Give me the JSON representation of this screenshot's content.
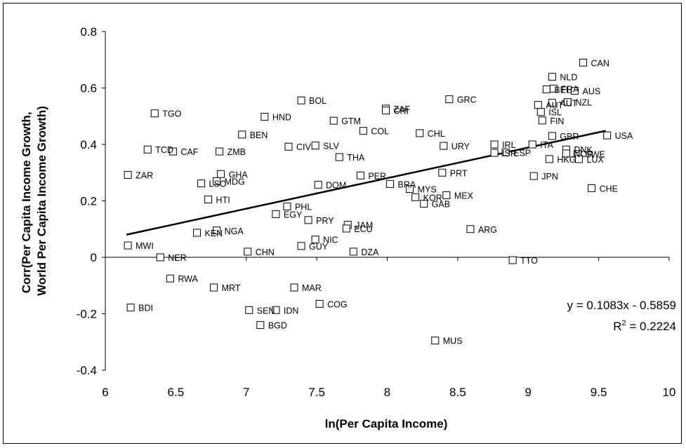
{
  "chart_data": {
    "type": "scatter",
    "xlabel": "ln(Per Capita Income)",
    "ylabel": [
      "Corr(Per Capita Income Growth,",
      "World Per Capita Income Growth)"
    ],
    "xlim": [
      6,
      10
    ],
    "ylim": [
      -0.4,
      0.8
    ],
    "xticks": [
      "6",
      "6.5",
      "7",
      "7.5",
      "8",
      "8.5",
      "9",
      "9.5",
      "10"
    ],
    "yticks": [
      "0.8",
      "0.6",
      "0.4",
      "0.2",
      "0",
      "-0.2",
      "-0.4"
    ],
    "grid": false,
    "marker": "open-square",
    "trendline": {
      "slope": 0.1083,
      "intercept": -0.5859,
      "x_range": [
        6.15,
        9.55
      ]
    },
    "equation": "y = 0.1083x - 0.5859",
    "r2_label": "R",
    "r2_sup": "2",
    "r2_value": " = 0.2224",
    "points": [
      {
        "label": "CAN",
        "x": 9.39,
        "y": 0.69
      },
      {
        "label": "NLD",
        "x": 9.17,
        "y": 0.64
      },
      {
        "label": "BEL",
        "x": 9.13,
        "y": 0.595
      },
      {
        "label": "FRA",
        "x": 9.18,
        "y": 0.598
      },
      {
        "label": "AUS",
        "x": 9.33,
        "y": 0.59
      },
      {
        "label": "NZL",
        "x": 9.28,
        "y": 0.55
      },
      {
        "label": "AUT",
        "x": 9.17,
        "y": 0.548
      },
      {
        "label": "AUT",
        "x": 9.07,
        "y": 0.54
      },
      {
        "label": "ISL",
        "x": 9.09,
        "y": 0.515
      },
      {
        "label": "FIN",
        "x": 9.1,
        "y": 0.485
      },
      {
        "label": "GBR",
        "x": 9.17,
        "y": 0.43
      },
      {
        "label": "USA",
        "x": 9.56,
        "y": 0.432
      },
      {
        "label": "ITA",
        "x": 9.03,
        "y": 0.4
      },
      {
        "label": "IRL",
        "x": 8.76,
        "y": 0.4
      },
      {
        "label": "ISR",
        "x": 8.76,
        "y": 0.37
      },
      {
        "label": "ESP",
        "x": 8.84,
        "y": 0.372
      },
      {
        "label": "DNK",
        "x": 9.27,
        "y": 0.382
      },
      {
        "label": "NOR",
        "x": 9.27,
        "y": 0.368
      },
      {
        "label": "SWE",
        "x": 9.35,
        "y": 0.366
      },
      {
        "label": "HKG",
        "x": 9.15,
        "y": 0.348
      },
      {
        "label": "LUX",
        "x": 9.36,
        "y": 0.348
      },
      {
        "label": "JPN",
        "x": 9.04,
        "y": 0.288
      },
      {
        "label": "CHE",
        "x": 9.45,
        "y": 0.245
      },
      {
        "label": "TTO",
        "x": 8.89,
        "y": -0.01
      },
      {
        "label": "GRC",
        "x": 8.44,
        "y": 0.56
      },
      {
        "label": "ZAF",
        "x": 7.99,
        "y": 0.527
      },
      {
        "label": "CRI",
        "x": 7.99,
        "y": 0.52
      },
      {
        "label": "CHL",
        "x": 8.23,
        "y": 0.44
      },
      {
        "label": "URY",
        "x": 8.4,
        "y": 0.395
      },
      {
        "label": "PRT",
        "x": 8.39,
        "y": 0.3
      },
      {
        "label": "MYS",
        "x": 8.16,
        "y": 0.242
      },
      {
        "label": "MEX",
        "x": 8.42,
        "y": 0.22
      },
      {
        "label": "KOR",
        "x": 8.2,
        "y": 0.213
      },
      {
        "label": "GAB",
        "x": 8.26,
        "y": 0.19
      },
      {
        "label": "ARG",
        "x": 8.59,
        "y": 0.1
      },
      {
        "label": "MUS",
        "x": 8.34,
        "y": -0.295
      },
      {
        "label": "BRA",
        "x": 8.02,
        "y": 0.26
      },
      {
        "label": "PER",
        "x": 7.81,
        "y": 0.29
      },
      {
        "label": "COL",
        "x": 7.83,
        "y": 0.448
      },
      {
        "label": "GTM",
        "x": 7.62,
        "y": 0.484
      },
      {
        "label": "BOL",
        "x": 7.39,
        "y": 0.556
      },
      {
        "label": "HND",
        "x": 7.13,
        "y": 0.498
      },
      {
        "label": "BEN",
        "x": 6.97,
        "y": 0.435
      },
      {
        "label": "CIV",
        "x": 7.3,
        "y": 0.392
      },
      {
        "label": "SLV",
        "x": 7.49,
        "y": 0.396
      },
      {
        "label": "THA",
        "x": 7.66,
        "y": 0.355
      },
      {
        "label": "DOM",
        "x": 7.51,
        "y": 0.257
      },
      {
        "label": "PHL",
        "x": 7.29,
        "y": 0.18
      },
      {
        "label": "EGY",
        "x": 7.21,
        "y": 0.153
      },
      {
        "label": "PRY",
        "x": 7.44,
        "y": 0.132
      },
      {
        "label": "JAM",
        "x": 7.72,
        "y": 0.115
      },
      {
        "label": "ECU",
        "x": 7.71,
        "y": 0.102
      },
      {
        "label": "NIC",
        "x": 7.49,
        "y": 0.063
      },
      {
        "label": "GUY",
        "x": 7.39,
        "y": 0.04
      },
      {
        "label": "DZA",
        "x": 7.76,
        "y": 0.02
      },
      {
        "label": "CHN",
        "x": 7.01,
        "y": 0.02
      },
      {
        "label": "MAR",
        "x": 7.34,
        "y": -0.107
      },
      {
        "label": "COG",
        "x": 7.52,
        "y": -0.165
      },
      {
        "label": "IDN",
        "x": 7.21,
        "y": -0.187
      },
      {
        "label": "SEN",
        "x": 7.02,
        "y": -0.187
      },
      {
        "label": "BGD",
        "x": 7.1,
        "y": -0.24
      },
      {
        "label": "MRT",
        "x": 6.77,
        "y": -0.107
      },
      {
        "label": "RWA",
        "x": 6.46,
        "y": -0.075
      },
      {
        "label": "BDI",
        "x": 6.18,
        "y": -0.178
      },
      {
        "label": "NER",
        "x": 6.39,
        "y": 0.0
      },
      {
        "label": "MWI",
        "x": 6.16,
        "y": 0.042
      },
      {
        "label": "NGA",
        "x": 6.79,
        "y": 0.095
      },
      {
        "label": "KEN",
        "x": 6.65,
        "y": 0.087
      },
      {
        "label": "HTI",
        "x": 6.73,
        "y": 0.205
      },
      {
        "label": "LSO",
        "x": 6.68,
        "y": 0.262
      },
      {
        "label": "MDG",
        "x": 6.79,
        "y": 0.27
      },
      {
        "label": "GHA",
        "x": 6.82,
        "y": 0.295
      },
      {
        "label": "ZAR",
        "x": 6.16,
        "y": 0.292
      },
      {
        "label": "TCD",
        "x": 6.3,
        "y": 0.382
      },
      {
        "label": "CAF",
        "x": 6.48,
        "y": 0.375
      },
      {
        "label": "ZMB",
        "x": 6.81,
        "y": 0.375
      },
      {
        "label": "TGO",
        "x": 6.35,
        "y": 0.51
      }
    ]
  }
}
